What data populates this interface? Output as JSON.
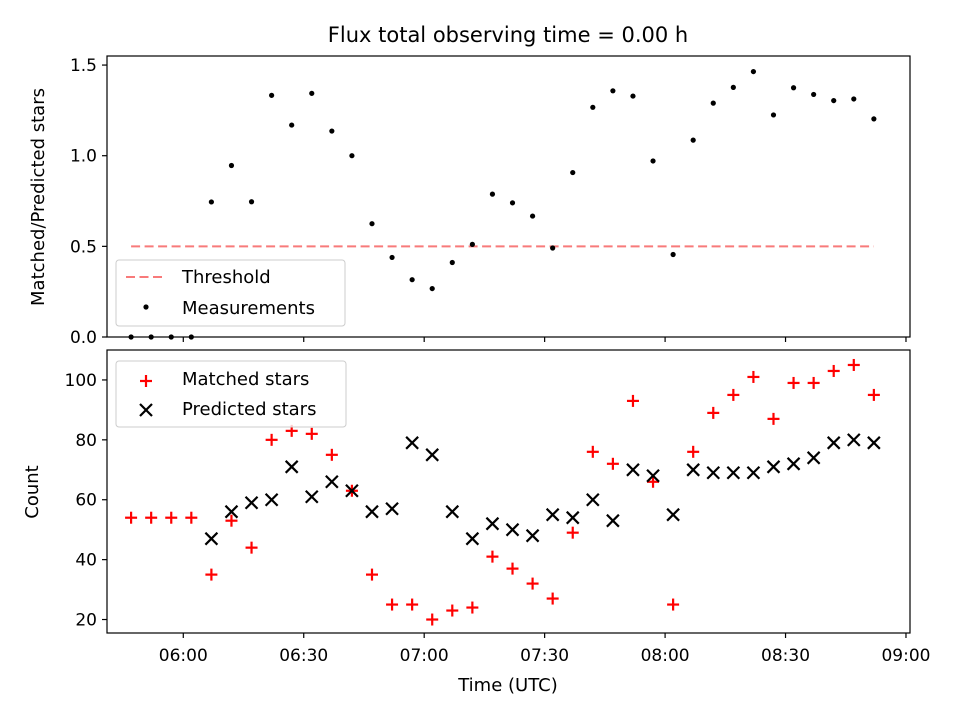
{
  "chart_data": [
    {
      "type": "scatter",
      "title": "Flux total observing time = 0.00 h",
      "ylabel": "Matched/Predicted stars",
      "xlabel": "",
      "ylim": [
        0,
        1.55
      ],
      "yticks": [
        "0.0",
        "0.5",
        "1.0",
        "1.5"
      ],
      "threshold": {
        "name": "Threshold",
        "value": 0.5,
        "color": "#f87a7a",
        "x_start": "05:47",
        "x_end": "08:52"
      },
      "legend": {
        "placement": "lower-left",
        "entries": [
          "Threshold",
          "Measurements"
        ]
      },
      "series": [
        {
          "name": "Measurements",
          "color": "#000000",
          "x": [
            "05:47",
            "05:52",
            "05:57",
            "06:02",
            "06:07",
            "06:12",
            "06:17",
            "06:22",
            "06:27",
            "06:32",
            "06:37",
            "06:42",
            "06:47",
            "06:52",
            "06:57",
            "07:02",
            "07:07",
            "07:12",
            "07:17",
            "07:22",
            "07:27",
            "07:32",
            "07:37",
            "07:42",
            "07:47",
            "07:52",
            "07:57",
            "08:02",
            "08:07",
            "08:12",
            "08:17",
            "08:22",
            "08:27",
            "08:32",
            "08:37",
            "08:42",
            "08:47",
            "08:52"
          ],
          "y": [
            0.0,
            0.0,
            0.0,
            0.0,
            0.745,
            0.946,
            0.746,
            1.333,
            1.169,
            1.344,
            1.136,
            1.0,
            0.625,
            0.439,
            0.316,
            0.267,
            0.411,
            0.511,
            0.788,
            0.74,
            0.667,
            0.491,
            0.907,
            1.267,
            1.358,
            1.329,
            0.971,
            0.455,
            1.086,
            1.29,
            1.377,
            1.464,
            1.225,
            1.375,
            1.338,
            1.304,
            1.313,
            1.203
          ]
        }
      ]
    },
    {
      "type": "scatter",
      "title": "",
      "ylabel": "Count",
      "xlabel": "Time (UTC)",
      "ylim": [
        15.5,
        110
      ],
      "yticks": [
        "20",
        "40",
        "60",
        "80",
        "100"
      ],
      "xlim": [
        "05:41",
        "09:01"
      ],
      "xticks": [
        "06:00",
        "06:30",
        "07:00",
        "07:30",
        "08:00",
        "08:30",
        "09:00"
      ],
      "legend": {
        "placement": "upper-left",
        "entries": [
          "Matched stars",
          "Predicted stars"
        ]
      },
      "series": [
        {
          "name": "Matched stars",
          "color": "#ff0000",
          "x": [
            "05:47",
            "05:52",
            "05:57",
            "06:02",
            "06:07",
            "06:12",
            "06:17",
            "06:22",
            "06:27",
            "06:32",
            "06:37",
            "06:42",
            "06:47",
            "06:52",
            "06:57",
            "07:02",
            "07:07",
            "07:12",
            "07:17",
            "07:22",
            "07:27",
            "07:32",
            "07:37",
            "07:42",
            "07:47",
            "07:52",
            "07:57",
            "08:02",
            "08:07",
            "08:12",
            "08:17",
            "08:22",
            "08:27",
            "08:32",
            "08:37",
            "08:42",
            "08:47",
            "08:52"
          ],
          "y": [
            54,
            54,
            54,
            54,
            35,
            53,
            44,
            80,
            83,
            82,
            75,
            63,
            35,
            25,
            25,
            20,
            23,
            24,
            41,
            37,
            32,
            27,
            49,
            76,
            72,
            93,
            66,
            25,
            76,
            89,
            95,
            101,
            87,
            99,
            99,
            103,
            105,
            95
          ]
        },
        {
          "name": "Predicted stars",
          "color": "#000000",
          "x": [
            "06:07",
            "06:12",
            "06:17",
            "06:22",
            "06:27",
            "06:32",
            "06:37",
            "06:42",
            "06:47",
            "06:52",
            "06:57",
            "07:02",
            "07:07",
            "07:12",
            "07:17",
            "07:22",
            "07:27",
            "07:32",
            "07:37",
            "07:42",
            "07:47",
            "07:52",
            "07:57",
            "08:02",
            "08:07",
            "08:12",
            "08:17",
            "08:22",
            "08:27",
            "08:32",
            "08:37",
            "08:42",
            "08:47",
            "08:52"
          ],
          "y": [
            47,
            56,
            59,
            60,
            71,
            61,
            66,
            63,
            56,
            57,
            79,
            75,
            56,
            47,
            52,
            50,
            48,
            55,
            54,
            60,
            53,
            70,
            68,
            55,
            70,
            69,
            69,
            69,
            71,
            72,
            74,
            79,
            80,
            79
          ]
        }
      ]
    }
  ]
}
